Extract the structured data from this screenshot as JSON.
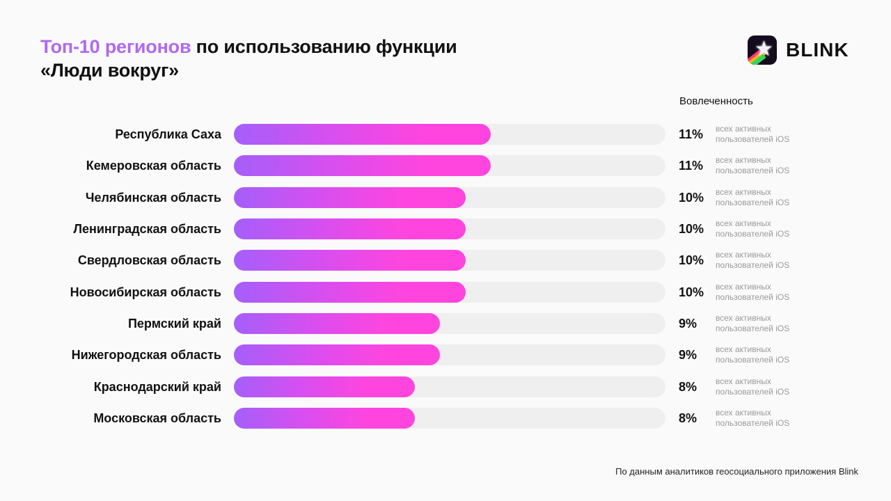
{
  "header": {
    "title_accent": "Топ-10 регионов",
    "title_rest": " по использованию функции",
    "title_line2": "«Люди вокруг»"
  },
  "logo": {
    "text": "BLINK",
    "icon": "star-app-icon"
  },
  "colors": {
    "accent": "#b069f0",
    "bar_start": "#a55ffa",
    "bar_end": "#ff45de",
    "track": "#efefef"
  },
  "footer": "По данным аналитиков геосоциального приложения Blink",
  "chart_data": {
    "type": "bar",
    "orientation": "horizontal",
    "title": "Топ-10 регионов по использованию функции «Люди вокруг»",
    "value_header": "Вовлеченность",
    "unit": "%",
    "value_note_line1": "всех активных",
    "value_note_line2": "пользователей iOS",
    "categories": [
      "Республика Саха",
      "Кемеровская область",
      "Челябинская область",
      "Ленинградская область",
      "Свердловская область",
      "Новосибирская область",
      "Пермский край",
      "Нижегородская область",
      "Краснодарский край",
      "Московская область"
    ],
    "values": [
      11,
      11,
      10,
      10,
      10,
      10,
      9,
      9,
      8,
      8
    ],
    "value_labels": [
      "11%",
      "11%",
      "10%",
      "10%",
      "10%",
      "10%",
      "9%",
      "9%",
      "8%",
      "8%"
    ]
  }
}
